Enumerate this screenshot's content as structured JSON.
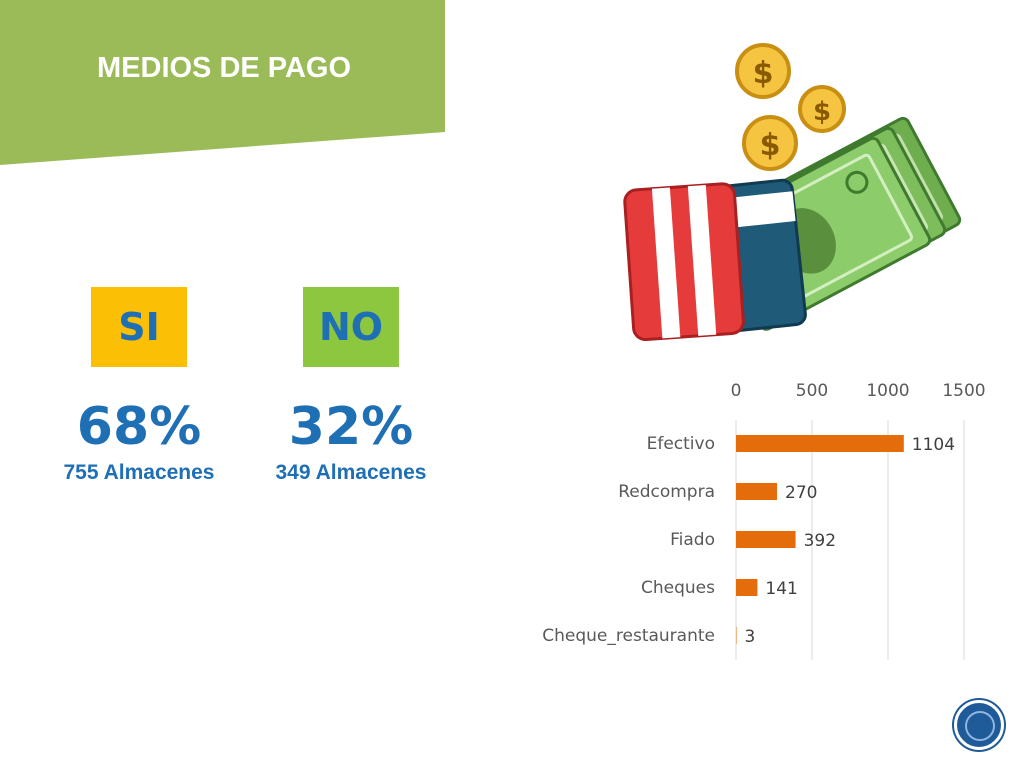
{
  "header": {
    "title": "MEDIOS DE PAGO"
  },
  "summary": {
    "si": {
      "label": "SI",
      "percent": "68%",
      "count": "755 Almacenes"
    },
    "no": {
      "label": "NO",
      "percent": "32%",
      "count": "349 Almacenes"
    }
  },
  "colors": {
    "banner": "#9bbb59",
    "si": "#fbbf06",
    "no": "#8dc63f",
    "text": "#1f6fb5",
    "bar": "#e46c0a"
  },
  "illustration": {
    "icon": "wallet-cash-coins-icon"
  },
  "chart_data": {
    "type": "bar",
    "orientation": "horizontal",
    "categories": [
      "Efectivo",
      "Redcompra",
      "Fiado",
      "Cheques",
      "Cheque_restaurante"
    ],
    "values": [
      1104,
      270,
      392,
      141,
      3
    ],
    "xlim": [
      0,
      1500
    ],
    "xticks": [
      0,
      500,
      1000,
      1500
    ],
    "xaxis_position": "top",
    "grid": true,
    "legend": "none",
    "data_labels": true
  }
}
